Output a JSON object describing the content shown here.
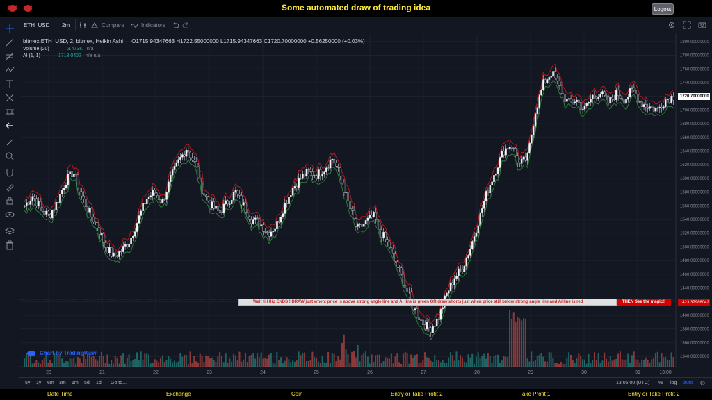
{
  "header": {
    "title": "Some automated draw of trading idea",
    "logout_label": "Logout"
  },
  "toolbar": {
    "symbol": "ETH_USD",
    "interval": "2m",
    "compare_label": "Compare",
    "indicators_label": "Indicators"
  },
  "legend": {
    "main": "bitmex:ETH_USD, 2, bitmex, Heikin Ashi",
    "ohlc": "O1715.94347663  H1722.55000000  L1715.94347663  C1720.70000000  +0.56250000 (+0.03%)",
    "volume_label": "Volume (20)",
    "volume_value": "3.473K",
    "volume_na": "n/a",
    "ai_label": "AI (1, 1)",
    "ai_value": "1713.0402",
    "ai_na": "n/a  n/a"
  },
  "price_axis": {
    "labels": [
      "1800.00000000",
      "1780.00000000",
      "1760.00000000",
      "1740.00000000",
      "1700.00000000",
      "1680.00000000",
      "1660.00000000",
      "1640.00000000",
      "1620.00000000",
      "1600.00000000",
      "1580.00000000",
      "1560.00000000",
      "1540.00000000",
      "1520.00000000",
      "1500.00000000",
      "1480.00000000",
      "1460.00000000",
      "1440.00000000",
      "1400.00000000",
      "1380.00000000",
      "1360.00000000",
      "1340.00000000"
    ],
    "current_price": "1720.70000000",
    "marker_price": "1423.37986042"
  },
  "time_axis": {
    "labels": [
      "20",
      "21",
      "22",
      "23",
      "24",
      "25",
      "26",
      "27",
      "28",
      "29",
      "30",
      "31",
      "13:00"
    ]
  },
  "annotation": {
    "text": "Wait till flip ENDS  !   DRAW just when:  price is above strong angle line and AI line is green          OR          draw shorts just when price still below strong angle line and AI line is red",
    "cta": "THEN See the magic!!"
  },
  "watermark": "Chart by TradingView",
  "bottom": {
    "ranges": [
      "5y",
      "1y",
      "6m",
      "3m",
      "1m",
      "5d",
      "1d"
    ],
    "goto": "Go to...",
    "clock": "13:05:00 (UTC)",
    "percent": "%",
    "log": "log",
    "auto": "auto"
  },
  "footer": {
    "items": [
      "Date Time",
      "Exchange",
      "Coin",
      "Entry or Take Profit 2",
      "Take Profit 1",
      "Entry or Take Profit 2"
    ]
  },
  "chart_data": {
    "type": "candlestick",
    "title": "",
    "xlabel": "",
    "ylabel": "",
    "ylim": [
      1335,
      1810
    ],
    "x_ticks": [
      "20",
      "21",
      "22",
      "23",
      "24",
      "25",
      "26",
      "27",
      "28",
      "29",
      "30",
      "31"
    ],
    "close_path": [
      1560,
      1575,
      1555,
      1545,
      1565,
      1595,
      1610,
      1575,
      1550,
      1530,
      1500,
      1485,
      1495,
      1510,
      1540,
      1570,
      1580,
      1565,
      1600,
      1625,
      1645,
      1620,
      1580,
      1560,
      1550,
      1565,
      1580,
      1560,
      1540,
      1535,
      1520,
      1530,
      1560,
      1585,
      1600,
      1610,
      1605,
      1615,
      1630,
      1600,
      1560,
      1525,
      1535,
      1545,
      1520,
      1500,
      1470,
      1440,
      1410,
      1390,
      1380,
      1395,
      1430,
      1455,
      1470,
      1500,
      1540,
      1580,
      1610,
      1640,
      1650,
      1620,
      1630,
      1700,
      1740,
      1755,
      1730,
      1710,
      1715,
      1700,
      1720,
      1725,
      1710,
      1725,
      1715,
      1730,
      1710,
      1705,
      1700,
      1715,
      1720
    ]
  }
}
